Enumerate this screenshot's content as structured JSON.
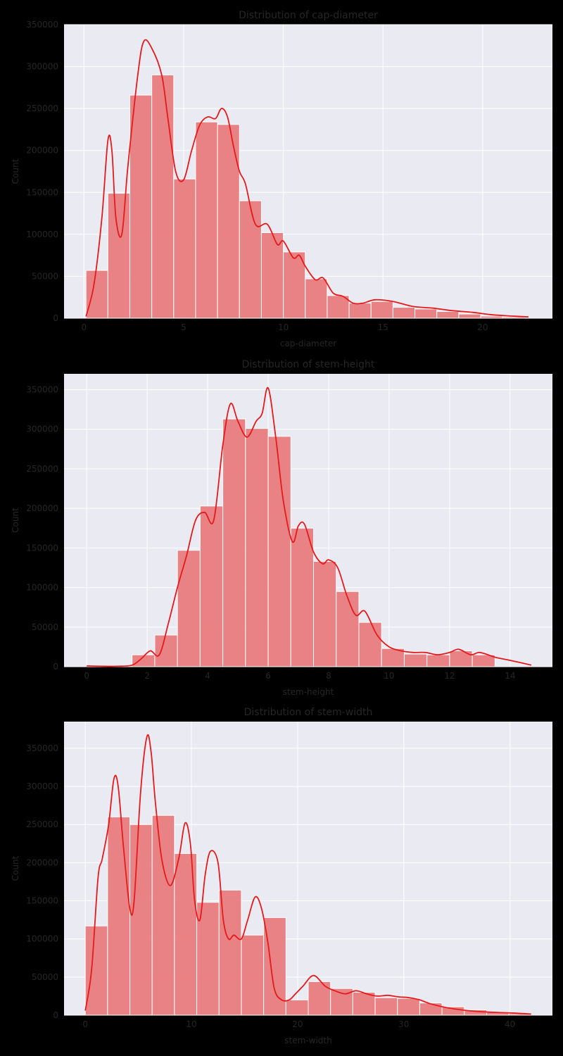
{
  "figure": {
    "background": "#000000",
    "panel_color": "#eaeaf2",
    "bar_color": "#e8787b",
    "kde_color": "#e41a1c"
  },
  "chart_data": [
    {
      "type": "bar",
      "title": "Distribution of cap-diameter",
      "xlabel": "cap-diameter",
      "ylabel": "Count",
      "xlim": [
        -1.0,
        23.5
      ],
      "ylim": [
        0,
        350000
      ],
      "xticks": [
        0,
        5,
        10,
        15,
        20
      ],
      "yticks": [
        0,
        50000,
        100000,
        150000,
        200000,
        250000,
        300000,
        350000
      ],
      "grid": true,
      "bin_edges": [
        0.1,
        1.2,
        2.3,
        3.4,
        4.5,
        5.6,
        6.7,
        7.8,
        8.9,
        10.0,
        11.1,
        12.2,
        13.3,
        14.4,
        15.5,
        16.6,
        17.7,
        18.8,
        19.9,
        21.0,
        22.1
      ],
      "counts": [
        57000,
        149000,
        266000,
        290000,
        166000,
        234000,
        231000,
        140000,
        102000,
        79000,
        47000,
        27000,
        18000,
        20000,
        13000,
        11000,
        8000,
        5000,
        2500,
        1500
      ],
      "kde": {
        "x": [
          0.1,
          0.5,
          0.9,
          1.2,
          1.4,
          1.6,
          1.9,
          2.2,
          2.7,
          3.0,
          3.4,
          3.9,
          4.2,
          4.6,
          5.0,
          5.4,
          5.8,
          6.2,
          6.6,
          6.9,
          7.2,
          7.5,
          7.8,
          8.1,
          8.6,
          9.2,
          9.7,
          10.0,
          10.5,
          10.8,
          11.1,
          11.6,
          12.0,
          12.5,
          13.0,
          13.5,
          14.0,
          14.6,
          15.5,
          16.5,
          17.5,
          18.5,
          19.5,
          20.5,
          21.5,
          22.3
        ],
        "y": [
          2000,
          40000,
          120000,
          212000,
          200000,
          120000,
          100000,
          180000,
          290000,
          330000,
          322000,
          290000,
          240000,
          175000,
          165000,
          200000,
          230000,
          240000,
          238000,
          250000,
          240000,
          205000,
          175000,
          160000,
          112000,
          112000,
          88000,
          92000,
          72000,
          75000,
          62000,
          46000,
          48000,
          30000,
          26000,
          18000,
          18000,
          22000,
          20000,
          14000,
          12000,
          9000,
          7000,
          4000,
          2500,
          1500
        ]
      }
    },
    {
      "type": "bar",
      "title": "Distribution of stem-height",
      "xlabel": "stem-height",
      "ylabel": "Count",
      "xlim": [
        -0.75,
        15.4
      ],
      "ylim": [
        0,
        370000
      ],
      "xticks": [
        0,
        2,
        4,
        6,
        8,
        10,
        12,
        14
      ],
      "yticks": [
        0,
        50000,
        100000,
        150000,
        200000,
        250000,
        300000,
        350000
      ],
      "grid": true,
      "bin_edges": [
        1.5,
        2.25,
        3.0,
        3.75,
        4.5,
        5.25,
        6.0,
        6.75,
        7.5,
        8.25,
        9.0,
        9.75,
        10.5,
        11.25,
        12.0,
        12.75,
        13.5
      ],
      "counts": [
        15000,
        40000,
        147000,
        203000,
        313000,
        301000,
        291000,
        175000,
        133000,
        95000,
        56000,
        23000,
        16000,
        15000,
        20000,
        15000
      ],
      "kde": {
        "x": [
          0.0,
          0.5,
          1.0,
          1.5,
          1.8,
          2.1,
          2.4,
          2.7,
          3.0,
          3.3,
          3.6,
          3.9,
          4.2,
          4.5,
          4.75,
          5.0,
          5.3,
          5.6,
          5.8,
          6.0,
          6.25,
          6.5,
          6.8,
          7.0,
          7.2,
          7.5,
          7.8,
          8.0,
          8.3,
          8.6,
          8.9,
          9.2,
          9.6,
          10.0,
          10.4,
          10.8,
          11.2,
          11.6,
          12.0,
          12.3,
          12.7,
          13.0,
          13.5,
          14.0,
          14.7
        ],
        "y": [
          1000,
          500,
          500,
          2000,
          10000,
          20000,
          15000,
          55000,
          100000,
          140000,
          185000,
          195000,
          185000,
          280000,
          332000,
          310000,
          290000,
          310000,
          320000,
          352000,
          290000,
          210000,
          158000,
          178000,
          180000,
          145000,
          130000,
          135000,
          125000,
          90000,
          65000,
          70000,
          40000,
          25000,
          20000,
          18000,
          18000,
          15000,
          18000,
          22000,
          15000,
          18000,
          12000,
          8000,
          2000
        ]
      }
    },
    {
      "type": "bar",
      "title": "Distribution of stem-width",
      "xlabel": "stem-width",
      "ylabel": "Count",
      "xlim": [
        -2.0,
        44.0
      ],
      "ylim": [
        0,
        385000
      ],
      "xticks": [
        0,
        10,
        20,
        30,
        40
      ],
      "yticks": [
        0,
        50000,
        100000,
        150000,
        200000,
        250000,
        300000,
        350000
      ],
      "grid": true,
      "bin_edges": [
        0.0,
        2.1,
        4.2,
        6.3,
        8.4,
        10.5,
        12.6,
        14.7,
        16.8,
        18.9,
        21.0,
        23.1,
        25.2,
        27.3,
        29.4,
        31.5,
        33.6,
        35.7,
        37.8,
        39.9,
        42.0
      ],
      "counts": [
        117000,
        260000,
        250000,
        262000,
        212000,
        148000,
        164000,
        105000,
        128000,
        20000,
        44000,
        35000,
        30000,
        23000,
        22000,
        16000,
        11000,
        7000,
        4000,
        2000
      ],
      "kde": {
        "x": [
          0.0,
          0.6,
          1.2,
          1.6,
          2.2,
          2.7,
          3.1,
          3.6,
          4.2,
          4.6,
          5.2,
          5.8,
          6.2,
          6.6,
          7.2,
          8.0,
          8.8,
          9.4,
          9.9,
          10.3,
          10.8,
          11.3,
          11.8,
          12.5,
          13.0,
          13.5,
          14.0,
          14.7,
          15.3,
          16.0,
          16.6,
          17.2,
          17.8,
          18.5,
          19.2,
          19.8,
          20.5,
          21.5,
          22.6,
          23.5,
          24.5,
          25.5,
          26.5,
          27.5,
          28.5,
          29.5,
          30.5,
          31.5,
          32.5,
          34.0,
          36.0,
          38.0,
          40.0,
          42.0
        ],
        "y": [
          6000,
          60000,
          180000,
          205000,
          250000,
          310000,
          300000,
          220000,
          140000,
          150000,
          290000,
          365000,
          345000,
          280000,
          205000,
          170000,
          205000,
          252000,
          225000,
          150000,
          125000,
          185000,
          215000,
          200000,
          125000,
          100000,
          105000,
          100000,
          125000,
          155000,
          140000,
          95000,
          35000,
          20000,
          20000,
          28000,
          38000,
          52000,
          38000,
          32000,
          28000,
          32000,
          28000,
          25000,
          26000,
          24000,
          23000,
          20000,
          15000,
          10000,
          6000,
          4000,
          3000,
          1500
        ]
      }
    }
  ]
}
